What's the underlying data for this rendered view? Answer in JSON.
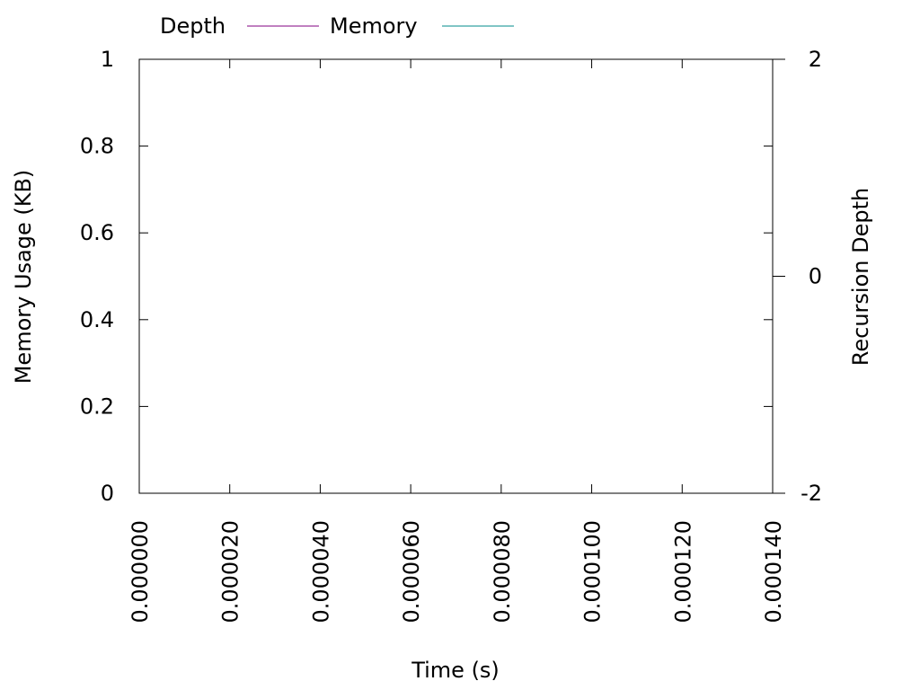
{
  "chart_data": {
    "type": "line",
    "title": "",
    "xlabel": "Time (s)",
    "ylabel": "Memory Usage (KB)",
    "y2label": "Recursion Depth",
    "xlim": [
      0,
      0.00014
    ],
    "ylim": [
      0,
      1
    ],
    "y2lim": [
      -2,
      2
    ],
    "x_ticks": [
      "0.000000",
      "0.000020",
      "0.000040",
      "0.000060",
      "0.000080",
      "0.000100",
      "0.000120",
      "0.000140"
    ],
    "y_ticks": [
      "0",
      "0.2",
      "0.4",
      "0.6",
      "0.8",
      "1"
    ],
    "y2_ticks": [
      "-2",
      "0",
      "2"
    ],
    "grid": false,
    "legend_position": "top-left",
    "series": [
      {
        "name": "Depth",
        "color": "#800080",
        "axis": "y2",
        "x": [],
        "y": []
      },
      {
        "name": "Memory",
        "color": "#008b8b",
        "axis": "y",
        "x": [],
        "y": []
      }
    ]
  }
}
